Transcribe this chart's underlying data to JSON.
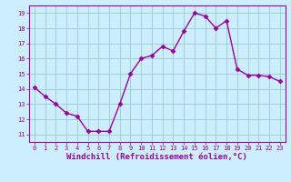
{
  "x": [
    0,
    1,
    2,
    3,
    4,
    5,
    6,
    7,
    8,
    9,
    10,
    11,
    12,
    13,
    14,
    15,
    16,
    17,
    18,
    19,
    20,
    21,
    22,
    23
  ],
  "y": [
    14.1,
    13.5,
    13.0,
    12.4,
    12.2,
    11.2,
    11.2,
    11.2,
    13.0,
    15.0,
    16.0,
    16.2,
    16.8,
    16.5,
    17.8,
    19.0,
    18.8,
    18.0,
    18.5,
    15.3,
    14.9,
    14.9,
    14.8,
    14.5
  ],
  "line_color": "#990099",
  "marker": "D",
  "markersize": 2.5,
  "linewidth": 1.0,
  "bg_color": "#cceeff",
  "grid_color": "#99cccc",
  "xlabel": "Windchill (Refroidissement éolien,°C)",
  "xlim": [
    -0.5,
    23.5
  ],
  "ylim": [
    10.5,
    19.5
  ],
  "yticks": [
    11,
    12,
    13,
    14,
    15,
    16,
    17,
    18,
    19
  ],
  "xticks": [
    0,
    1,
    2,
    3,
    4,
    5,
    6,
    7,
    8,
    9,
    10,
    11,
    12,
    13,
    14,
    15,
    16,
    17,
    18,
    19,
    20,
    21,
    22,
    23
  ],
  "xtick_labels": [
    "0",
    "1",
    "2",
    "3",
    "4",
    "5",
    "6",
    "7",
    "8",
    "9",
    "10",
    "11",
    "12",
    "13",
    "14",
    "15",
    "16",
    "17",
    "18",
    "19",
    "20",
    "21",
    "22",
    "23"
  ],
  "tick_fontsize": 5.0,
  "xlabel_fontsize": 6.5
}
